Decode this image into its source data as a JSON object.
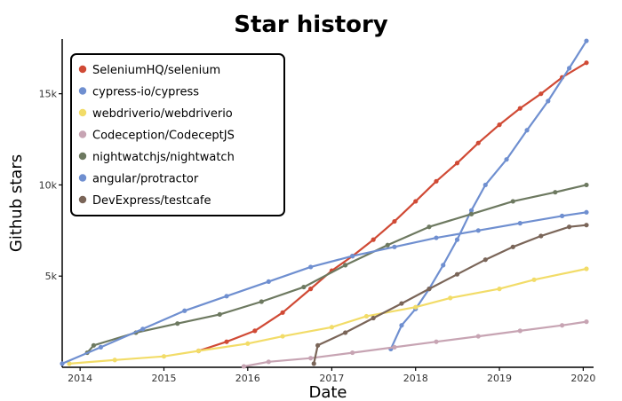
{
  "chart_data": {
    "type": "line",
    "title": "Star history",
    "xlabel": "Date",
    "ylabel": "Github stars",
    "xlim": [
      "2013-10-15",
      "2020-02-15"
    ],
    "ylim": [
      0,
      18000
    ],
    "x_ticks": [
      "2014",
      "2015",
      "2016",
      "2017",
      "2018",
      "2019",
      "2020"
    ],
    "y_ticks": [
      {
        "value": 5000,
        "label": "5k"
      },
      {
        "value": 10000,
        "label": "10k"
      },
      {
        "value": 15000,
        "label": "15k"
      }
    ],
    "grid": false,
    "legend_position": "top-left",
    "series": [
      {
        "name": "SeleniumHQ/selenium",
        "color": "#d04a35",
        "points": [
          [
            "2015-06-01",
            900
          ],
          [
            "2015-10-01",
            1400
          ],
          [
            "2016-02-01",
            2000
          ],
          [
            "2016-06-01",
            3000
          ],
          [
            "2016-10-01",
            4300
          ],
          [
            "2017-01-01",
            5300
          ],
          [
            "2017-04-01",
            6100
          ],
          [
            "2017-07-01",
            7000
          ],
          [
            "2017-10-01",
            8000
          ],
          [
            "2018-01-01",
            9100
          ],
          [
            "2018-04-01",
            10200
          ],
          [
            "2018-07-01",
            11200
          ],
          [
            "2018-10-01",
            12300
          ],
          [
            "2019-01-01",
            13300
          ],
          [
            "2019-04-01",
            14200
          ],
          [
            "2019-07-01",
            15000
          ],
          [
            "2019-10-01",
            15900
          ],
          [
            "2020-01-15",
            16700
          ]
        ]
      },
      {
        "name": "cypress-io/cypress",
        "color": "#6f8fd0",
        "points": [
          [
            "2017-09-15",
            1000
          ],
          [
            "2017-11-01",
            2300
          ],
          [
            "2018-01-01",
            3200
          ],
          [
            "2018-03-01",
            4300
          ],
          [
            "2018-05-01",
            5600
          ],
          [
            "2018-07-01",
            7000
          ],
          [
            "2018-09-01",
            8600
          ],
          [
            "2018-11-01",
            10000
          ],
          [
            "2019-02-01",
            11400
          ],
          [
            "2019-05-01",
            13000
          ],
          [
            "2019-08-01",
            14600
          ],
          [
            "2019-11-01",
            16400
          ],
          [
            "2020-01-15",
            17900
          ]
        ]
      },
      {
        "name": "webdriverio/webdriverio",
        "color": "#f2dc68",
        "points": [
          [
            "2013-11-15",
            200
          ],
          [
            "2014-06-01",
            400
          ],
          [
            "2015-01-01",
            600
          ],
          [
            "2015-06-01",
            900
          ],
          [
            "2016-01-01",
            1300
          ],
          [
            "2016-06-01",
            1700
          ],
          [
            "2017-01-01",
            2200
          ],
          [
            "2017-06-01",
            2800
          ],
          [
            "2018-01-01",
            3300
          ],
          [
            "2018-06-01",
            3800
          ],
          [
            "2019-01-01",
            4300
          ],
          [
            "2019-06-01",
            4800
          ],
          [
            "2020-01-15",
            5400
          ]
        ]
      },
      {
        "name": "Codeception/CodeceptJS",
        "color": "#c7a4b3",
        "points": [
          [
            "2015-12-15",
            50
          ],
          [
            "2016-04-01",
            300
          ],
          [
            "2016-10-01",
            500
          ],
          [
            "2017-04-01",
            800
          ],
          [
            "2017-10-01",
            1100
          ],
          [
            "2018-04-01",
            1400
          ],
          [
            "2018-10-01",
            1700
          ],
          [
            "2019-04-01",
            2000
          ],
          [
            "2019-10-01",
            2300
          ],
          [
            "2020-01-15",
            2500
          ]
        ]
      },
      {
        "name": "nightwatchjs/nightwatch",
        "color": "#6d7960",
        "points": [
          [
            "2014-02-01",
            800
          ],
          [
            "2014-03-01",
            1200
          ],
          [
            "2014-09-01",
            1900
          ],
          [
            "2015-03-01",
            2400
          ],
          [
            "2015-09-01",
            2900
          ],
          [
            "2016-03-01",
            3600
          ],
          [
            "2016-09-01",
            4400
          ],
          [
            "2017-03-01",
            5600
          ],
          [
            "2017-09-01",
            6700
          ],
          [
            "2018-03-01",
            7700
          ],
          [
            "2018-09-01",
            8400
          ],
          [
            "2019-03-01",
            9100
          ],
          [
            "2019-09-01",
            9600
          ],
          [
            "2020-01-15",
            10000
          ]
        ]
      },
      {
        "name": "angular/protractor",
        "color": "#6f8fd0",
        "points": [
          [
            "2013-10-15",
            200
          ],
          [
            "2014-04-01",
            1100
          ],
          [
            "2014-10-01",
            2100
          ],
          [
            "2015-04-01",
            3100
          ],
          [
            "2015-10-01",
            3900
          ],
          [
            "2016-04-01",
            4700
          ],
          [
            "2016-10-01",
            5500
          ],
          [
            "2017-04-01",
            6100
          ],
          [
            "2017-10-01",
            6600
          ],
          [
            "2018-04-01",
            7100
          ],
          [
            "2018-10-01",
            7500
          ],
          [
            "2019-04-01",
            7900
          ],
          [
            "2019-10-01",
            8300
          ],
          [
            "2020-01-15",
            8500
          ]
        ]
      },
      {
        "name": "DevExpress/testcafe",
        "color": "#7a6558",
        "points": [
          [
            "2016-10-15",
            200
          ],
          [
            "2016-11-01",
            1200
          ],
          [
            "2017-03-01",
            1900
          ],
          [
            "2017-07-01",
            2700
          ],
          [
            "2017-11-01",
            3500
          ],
          [
            "2018-03-01",
            4300
          ],
          [
            "2018-07-01",
            5100
          ],
          [
            "2018-11-01",
            5900
          ],
          [
            "2019-03-01",
            6600
          ],
          [
            "2019-07-01",
            7200
          ],
          [
            "2019-11-01",
            7700
          ],
          [
            "2020-01-15",
            7800
          ]
        ]
      }
    ]
  }
}
